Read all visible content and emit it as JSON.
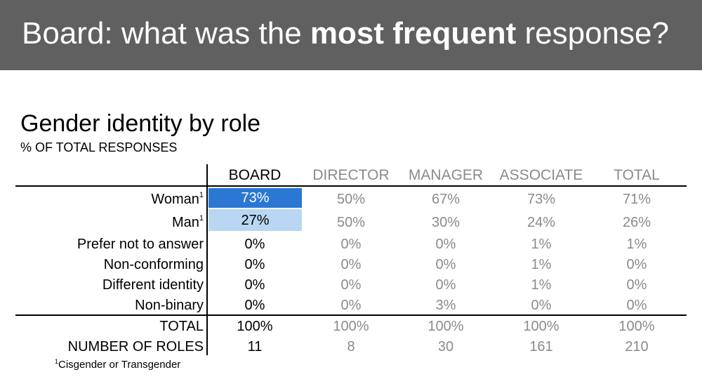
{
  "header": {
    "title_part1": "Board: what was the ",
    "title_bold": "most frequent",
    "title_part2": " response?",
    "background": "#606060"
  },
  "table_title": "Gender identity by role",
  "table_subtitle": "% OF TOTAL RESPONSES",
  "columns": [
    "BOARD",
    "DIRECTOR",
    "MANAGER",
    "ASSOCIATE",
    "TOTAL"
  ],
  "rows": [
    {
      "label": "Woman",
      "sup": "1",
      "values": [
        "73%",
        "50%",
        "67%",
        "73%",
        "71%"
      ]
    },
    {
      "label": "Man",
      "sup": "1",
      "values": [
        "27%",
        "50%",
        "30%",
        "24%",
        "26%"
      ]
    },
    {
      "label": "Prefer not to answer",
      "sup": "",
      "values": [
        "0%",
        "0%",
        "0%",
        "1%",
        "1%"
      ]
    },
    {
      "label": "Non-conforming",
      "sup": "",
      "values": [
        "0%",
        "0%",
        "0%",
        "1%",
        "0%"
      ]
    },
    {
      "label": "Different identity",
      "sup": "",
      "values": [
        "0%",
        "0%",
        "0%",
        "1%",
        "0%"
      ]
    },
    {
      "label": "Non-binary",
      "sup": "",
      "values": [
        "0%",
        "0%",
        "3%",
        "0%",
        "0%"
      ]
    },
    {
      "label": "TOTAL",
      "sup": "",
      "values": [
        "100%",
        "100%",
        "100%",
        "100%",
        "100%"
      ]
    },
    {
      "label": "NUMBER OF ROLES",
      "sup": "",
      "values": [
        "11",
        "8",
        "30",
        "161",
        "210"
      ]
    }
  ],
  "highlight_colors": {
    "strong": "#2b78d4",
    "light": "#b9d6f2"
  },
  "footnote": {
    "sup": "1",
    "text": "Cisgender or Transgender"
  }
}
